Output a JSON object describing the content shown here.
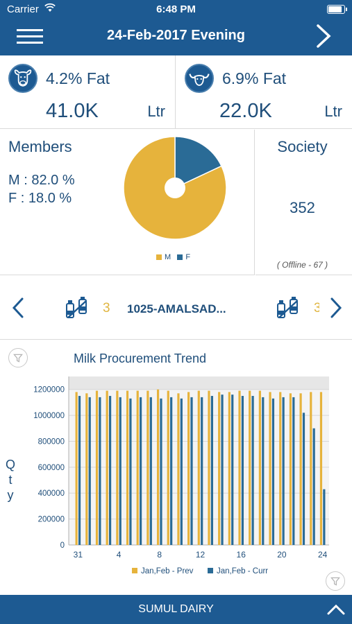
{
  "status_bar": {
    "carrier": "Carrier",
    "time": "6:48 PM",
    "battery_level": 0.9
  },
  "header": {
    "title": "24-Feb-2017  Evening",
    "menu_icon": "hamburger-icon",
    "next_icon": "chevron-right-icon"
  },
  "cow": {
    "fat_label": "4.2% Fat",
    "quantity": "41.0K",
    "unit": "Ltr",
    "icon": "cow-icon"
  },
  "buffalo": {
    "fat_label": "6.9% Fat",
    "quantity": "22.0K",
    "unit": "Ltr",
    "icon": "buffalo-icon"
  },
  "members": {
    "title": "Members",
    "m_line": "M : 82.0 %",
    "f_line": "F : 18.0 %",
    "pie": {
      "m_percent": 82.0,
      "f_percent": 18.0,
      "m_color": "#e6b33c",
      "f_color": "#2a6b96"
    },
    "legend_m": "M",
    "legend_f": "F"
  },
  "society": {
    "title": "Society",
    "count": "352",
    "offline": "( Offline - 67 )"
  },
  "navigator": {
    "index": "3",
    "next_index": "3",
    "name": "1025-AMALSAD...",
    "icon": "milk-can-icon"
  },
  "chart": {
    "title": "Milk Procurement Trend",
    "y_axis_label": [
      "Q",
      "t",
      "y"
    ],
    "legend_prev": "Jan,Feb - Prev",
    "legend_curr": "Jan,Feb - Curr",
    "filter_icon": "filter-icon"
  },
  "chart_data": {
    "type": "bar",
    "title": "Milk Procurement Trend",
    "ylabel": "Qty",
    "xlabel": "",
    "ylim": [
      0,
      1300000
    ],
    "yticks": [
      0,
      200000,
      400000,
      600000,
      800000,
      1000000,
      1200000
    ],
    "x_tick_labels": [
      "31",
      "4",
      "8",
      "12",
      "16",
      "20",
      "24"
    ],
    "categories": [
      "31",
      "1",
      "2",
      "3",
      "4",
      "5",
      "6",
      "7",
      "8",
      "9",
      "10",
      "11",
      "12",
      "13",
      "14",
      "15",
      "16",
      "17",
      "18",
      "19",
      "20",
      "21",
      "22",
      "23",
      "24"
    ],
    "series": [
      {
        "name": "Jan,Feb - Prev",
        "color": "#e6b33c",
        "values": [
          1180000,
          1170000,
          1190000,
          1190000,
          1190000,
          1190000,
          1190000,
          1190000,
          1200000,
          1190000,
          1170000,
          1180000,
          1190000,
          1190000,
          1180000,
          1180000,
          1190000,
          1190000,
          1190000,
          1180000,
          1180000,
          1170000,
          1170000,
          1180000,
          1180000
        ]
      },
      {
        "name": "Jan,Feb - Curr",
        "color": "#2a6b96",
        "values": [
          1150000,
          1140000,
          1140000,
          1150000,
          1140000,
          1130000,
          1140000,
          1140000,
          1130000,
          1140000,
          1130000,
          1140000,
          1140000,
          1150000,
          1160000,
          1160000,
          1150000,
          1150000,
          1140000,
          1130000,
          1140000,
          1140000,
          1020000,
          900000,
          430000
        ]
      }
    ],
    "grid": true
  },
  "footer": {
    "title": "SUMUL DAIRY",
    "up_icon": "chevron-up-icon"
  }
}
